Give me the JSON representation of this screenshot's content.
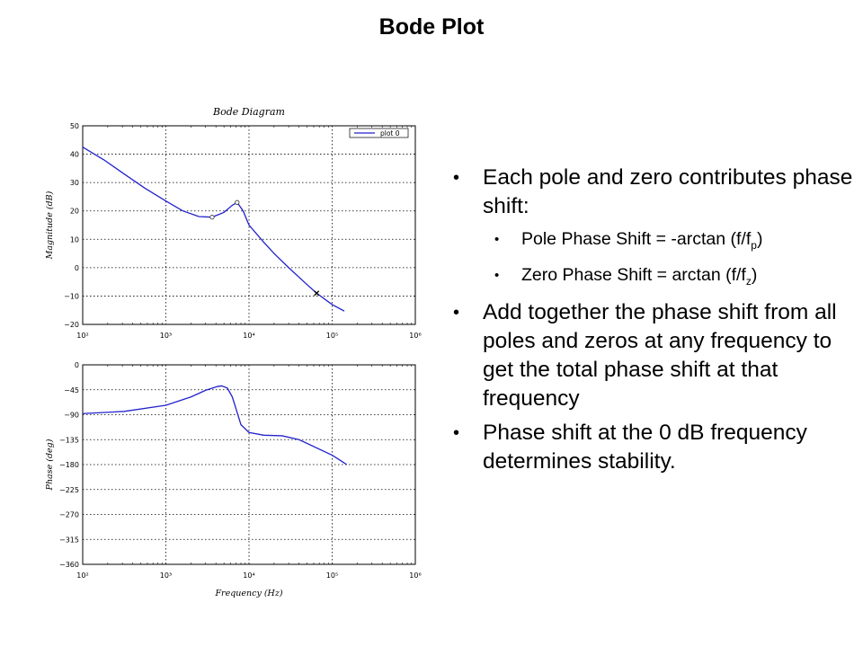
{
  "slide": {
    "title": "Bode Plot"
  },
  "bullets": [
    {
      "text": "Each pole and zero contributes phase shift:",
      "sub": [
        {
          "text": "Pole Phase Shift = -arctan (f/f",
          "subscript": "p",
          "tail": ")"
        },
        {
          "text": "Zero Phase Shift =  arctan (f/f",
          "subscript": "z",
          "tail": ")"
        }
      ]
    },
    {
      "text": "Add together the phase shift from all poles and zeros at any frequency to get the total phase shift at that frequency"
    },
    {
      "text": "Phase shift at the 0 dB frequency determines stability."
    }
  ],
  "chart_data": [
    {
      "type": "line",
      "title": "Bode Diagram",
      "xlabel": "",
      "ylabel": "Magnitude (dB)",
      "xscale": "log",
      "xlim": [
        100,
        1000000
      ],
      "ylim": [
        -20,
        50
      ],
      "xticks": [
        "10²",
        "10³",
        "10⁴",
        "10⁵",
        "10⁶"
      ],
      "yticks": [
        50,
        40,
        30,
        20,
        10,
        0,
        -10,
        -20
      ],
      "grid": true,
      "legend": {
        "placement": "top-right",
        "entries": [
          "plot 0"
        ]
      },
      "series": [
        {
          "name": "plot 0",
          "color": "#2222cc",
          "x": [
            100,
            180,
            316,
            560,
            1000,
            1600,
            2500,
            3600,
            5000,
            6300,
            7200,
            8500,
            10000,
            15000,
            20000,
            30000,
            50000,
            65000,
            100000,
            140000
          ],
          "y": [
            42.5,
            38,
            33,
            28,
            23.5,
            20,
            18,
            17.8,
            19.5,
            22,
            23,
            20,
            15,
            9,
            5,
            0,
            -6,
            -9,
            -13,
            -15.3
          ]
        }
      ],
      "markers": [
        {
          "shape": "circle",
          "x": 3600,
          "y": 17.8
        },
        {
          "shape": "circle",
          "x": 7200,
          "y": 23
        },
        {
          "shape": "x",
          "x": 65000,
          "y": -9
        }
      ]
    },
    {
      "type": "line",
      "title": "",
      "xlabel": "Frequency (Hz)",
      "ylabel": "Phase (deg)",
      "xscale": "log",
      "xlim": [
        100,
        1000000
      ],
      "ylim": [
        -360,
        0
      ],
      "xticks": [
        "10²",
        "10³",
        "10⁴",
        "10⁵",
        "10⁶"
      ],
      "yticks": [
        0,
        -45,
        -90,
        -135,
        -180,
        -225,
        -270,
        -315,
        -360
      ],
      "grid": true,
      "series": [
        {
          "name": "plot 0",
          "color": "#2222cc",
          "x": [
            100,
            316,
            1000,
            2000,
            3000,
            4200,
            4700,
            5500,
            6300,
            7000,
            8000,
            10000,
            15000,
            25000,
            40000,
            100000,
            150000
          ],
          "y": [
            -88,
            -84,
            -73,
            -58,
            -46,
            -39,
            -38,
            -42,
            -58,
            -80,
            -108,
            -122,
            -127,
            -128,
            -135,
            -163,
            -180
          ]
        }
      ]
    }
  ]
}
